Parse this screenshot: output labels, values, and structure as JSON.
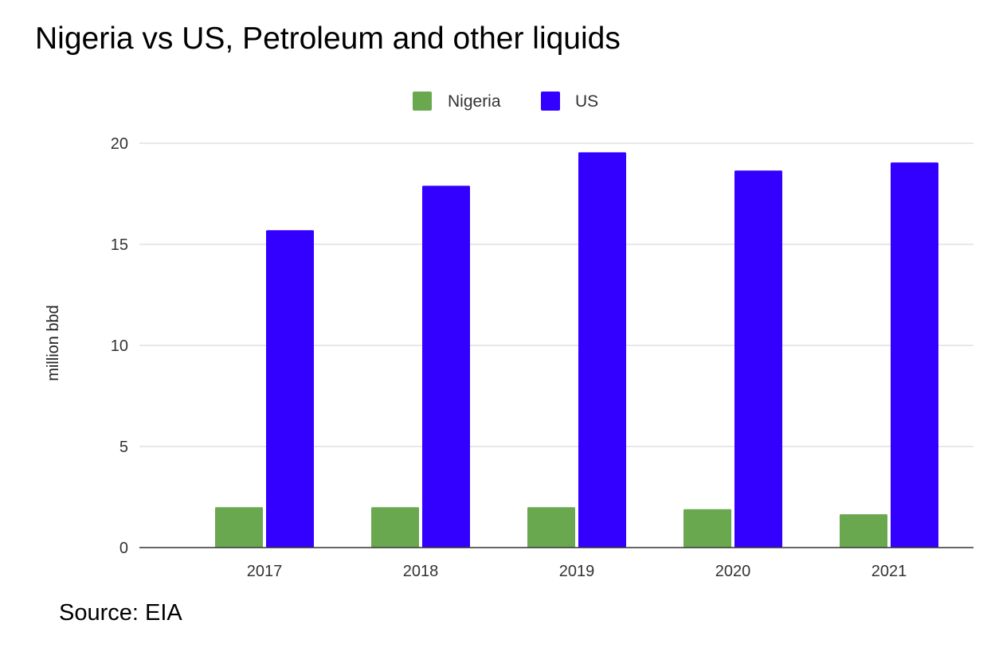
{
  "title": "Nigeria vs US, Petroleum and other liquids",
  "source": "Source: EIA",
  "chart_data": {
    "type": "bar",
    "title": "Nigeria vs US, Petroleum and other liquids",
    "xlabel": "",
    "ylabel": "million bbd",
    "categories": [
      "2017",
      "2018",
      "2019",
      "2020",
      "2021"
    ],
    "series": [
      {
        "name": "Nigeria",
        "color": "#6aa84f",
        "values": [
          2.0,
          2.0,
          2.0,
          1.9,
          1.65
        ]
      },
      {
        "name": "US",
        "color": "#3300ff",
        "values": [
          15.7,
          17.9,
          19.55,
          18.65,
          19.05
        ]
      }
    ],
    "ylim": [
      0,
      20
    ],
    "yticks": [
      "0",
      "5",
      "10",
      "15",
      "20"
    ],
    "grid": true,
    "legend": "top-center"
  }
}
